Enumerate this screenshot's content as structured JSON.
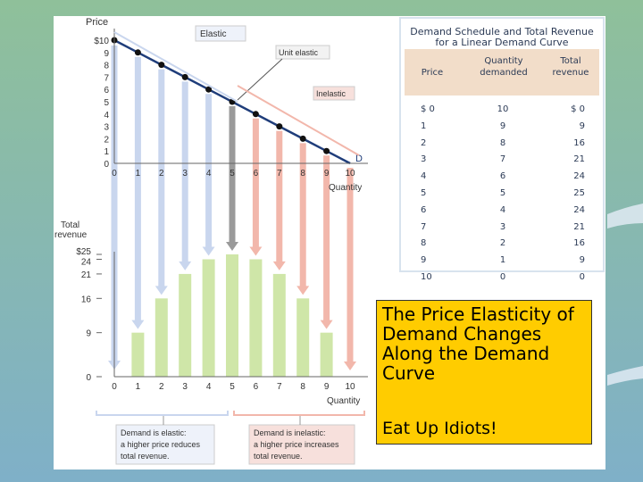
{
  "colors": {
    "slide_bg_top": "#8fc09a",
    "slide_bg_bottom": "#7fb0c8",
    "demand_line": "#1f3d7a",
    "elastic_arrow": "#c9d6ee",
    "unit_arrow": "#9a9a9a",
    "inelastic_arrow": "#f2b7ab",
    "revenue_bar": "#cfe6a8",
    "callout_bg": "#ffcc00",
    "schedule_header_bg": "#f2ddc9"
  },
  "chart_data": [
    {
      "type": "line",
      "title": "",
      "ylabel": "Price",
      "xlabel": "Quantity",
      "x": [
        0,
        1,
        2,
        3,
        4,
        5,
        6,
        7,
        8,
        9,
        10
      ],
      "series": [
        {
          "name": "D",
          "values": [
            10,
            9,
            8,
            7,
            6,
            5,
            4,
            3,
            2,
            1,
            0
          ]
        }
      ],
      "xlim": [
        0,
        10
      ],
      "ylim": [
        0,
        10
      ],
      "y_tick_labels": [
        "$10",
        "9",
        "8",
        "7",
        "6",
        "5",
        "4",
        "3",
        "2",
        "1",
        "0"
      ],
      "x_tick_labels": [
        "0",
        "1",
        "2",
        "3",
        "4",
        "5",
        "6",
        "7",
        "8",
        "9",
        "10"
      ],
      "annotations": [
        "Elastic",
        "Unit elastic",
        "Inelastic"
      ],
      "grid": false
    },
    {
      "type": "bar",
      "ylabel": "Total revenue",
      "xlabel": "Quantity",
      "categories": [
        1,
        2,
        3,
        4,
        5,
        6,
        7,
        8,
        9
      ],
      "values": [
        9,
        16,
        21,
        24,
        25,
        24,
        21,
        16,
        9
      ],
      "ylim": [
        0,
        25
      ],
      "y_ticks": [
        0,
        9,
        16,
        21,
        24,
        25
      ],
      "y_tick_labels": [
        "0",
        "9",
        "16",
        "21",
        "24",
        "$25"
      ],
      "x_tick_labels": [
        "0",
        "1",
        "2",
        "3",
        "4",
        "5",
        "6",
        "7",
        "8",
        "9",
        "10"
      ],
      "grid": false
    },
    {
      "type": "table",
      "title": "Demand Schedule and Total Revenue for a Linear Demand Curve",
      "columns": [
        "Price",
        "Quantity demanded",
        "Total revenue"
      ],
      "rows": [
        [
          "$ 0",
          "10",
          "$ 0"
        ],
        [
          "1",
          "9",
          "9"
        ],
        [
          "2",
          "8",
          "16"
        ],
        [
          "3",
          "7",
          "21"
        ],
        [
          "4",
          "6",
          "24"
        ],
        [
          "5",
          "5",
          "25"
        ],
        [
          "6",
          "4",
          "24"
        ],
        [
          "7",
          "3",
          "21"
        ],
        [
          "8",
          "2",
          "16"
        ],
        [
          "9",
          "1",
          "9"
        ],
        [
          "10",
          "0",
          "0"
        ]
      ]
    }
  ],
  "labels": {
    "price_axis": "Price",
    "quantity_axis": "Quantity",
    "revenue_axis_line1": "Total",
    "revenue_axis_line2": "revenue",
    "demand_label": "D",
    "elastic": "Elastic",
    "unit_elastic": "Unit elastic",
    "inelastic": "Inelastic"
  },
  "bottom_notes": {
    "elastic": [
      "Demand is elastic:",
      "a higher price reduces",
      "total revenue."
    ],
    "inelastic": [
      "Demand is inelastic:",
      "a higher price increases",
      "total revenue."
    ]
  },
  "schedule": {
    "title_line1": "Demand Schedule and Total Revenue",
    "title_line2": "for a Linear Demand Curve",
    "col_price": "Price",
    "col_qty_1": "Quantity",
    "col_qty_2": "demanded",
    "col_rev_1": "Total",
    "col_rev_2": "revenue"
  },
  "callout": {
    "title": "The Price Elasticity of Demand Changes Along the Demand Curve",
    "subtitle": "Eat Up Idiots!"
  }
}
